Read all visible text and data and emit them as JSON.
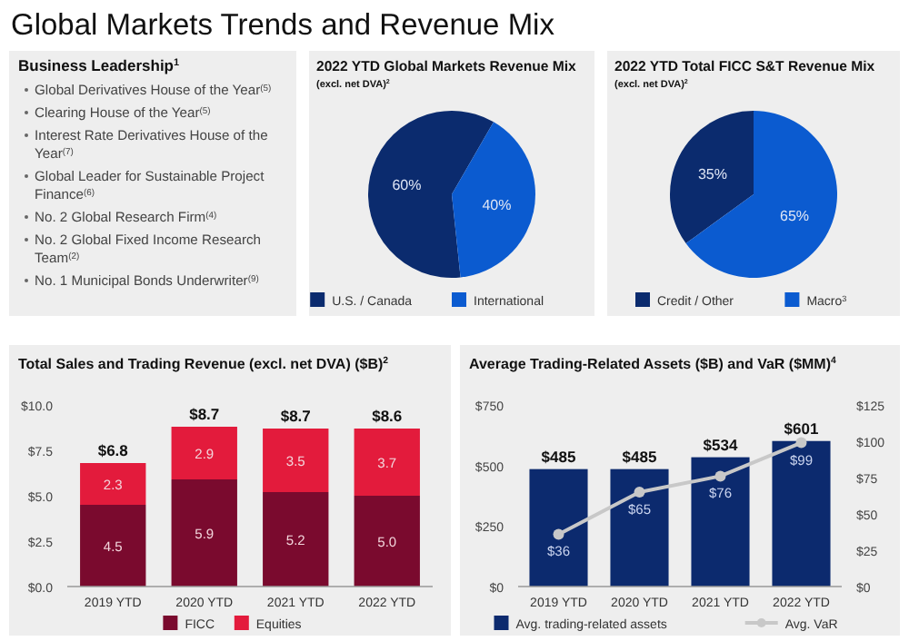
{
  "chart_data": [
    {
      "type": "other",
      "title": "Global Markets Trends and Revenue Mix",
      "subtitle": "Business Leadership$^{1}$",
      "annotations": [
        "Global Derivatives House of the Year$^{(5)}$",
        "Clearing House of the Year$^{(5)}$",
        "Interest Rate Derivatives House of the Year$^{(7)}$",
        "Global Leader for Sustainable Project Finance$^{(6)}$",
        "No. 2 Global Research Firm$^{(4)}$",
        "No. 2 Global Fixed Income Research Team$^{(2)}$",
        "No. 1 Municipal Bonds Underwriter$^{(9)}$"
      ]
    },
    {
      "type": "pie",
      "title": "2022 YTD Global Markets Revenue Mix",
      "subtitle": "(excl. net DVA)$^{2}$",
      "categories": [
        "U.S. / Canada",
        "International"
      ],
      "values": [
        60,
        40
      ],
      "colors": [
        "#0b2b6e",
        "#0b5bd0"
      ],
      "value_labels": [
        "60%",
        "40%"
      ],
      "legend": "bottom"
    },
    {
      "type": "pie",
      "title": "2022 YTD Total FICC S&T Revenue Mix",
      "subtitle": "(excl. net DVA)$^{2}$",
      "categories": [
        "Credit / Other",
        "Macro$^{3}$"
      ],
      "values": [
        35,
        65
      ],
      "colors": [
        "#0b2b6e",
        "#0b5bd0"
      ],
      "value_labels": [
        "35%",
        "65%"
      ],
      "legend": "bottom"
    },
    {
      "type": "bar",
      "title": "Total Sales and Trading Revenue (excl. net DVA) ($B)$^{2}$",
      "categories": [
        "2019 YTD",
        "2020 YTD",
        "2021 YTD",
        "2022 YTD"
      ],
      "stacked": true,
      "series": [
        {
          "name": "FICC",
          "color": "#7a0a2e",
          "values": [
            4.5,
            5.9,
            5.2,
            5.0
          ],
          "value_labels": [
            "4.5",
            "5.9",
            "5.2",
            "5.0"
          ]
        },
        {
          "name": "Equities",
          "color": "#e31b3c",
          "values": [
            2.3,
            2.9,
            3.5,
            3.7
          ],
          "value_labels": [
            "2.3",
            "2.9",
            "3.5",
            "3.7"
          ]
        }
      ],
      "totals": [
        "$6.8",
        "$8.7",
        "$8.7",
        "$8.6"
      ],
      "ylim": [
        0,
        10
      ],
      "yticks": [
        {
          "value": 0,
          "label": "$0.0"
        },
        {
          "value": 2.5,
          "label": "$2.5"
        },
        {
          "value": 5,
          "label": "$5.0"
        },
        {
          "value": 7.5,
          "label": "$7.5"
        },
        {
          "value": 10,
          "label": "$10.0"
        }
      ],
      "legend": "bottom"
    },
    {
      "type": "bar",
      "title": "Average Trading-Related Assets ($B) and VaR ($MM)$^{4}$",
      "categories": [
        "2019 YTD",
        "2020 YTD",
        "2021 YTD",
        "2022 YTD"
      ],
      "series": [
        {
          "name": "Avg. trading-related assets",
          "color": "#0c2a6e",
          "values": [
            485,
            485,
            534,
            601
          ],
          "value_labels": [
            "$485",
            "$485",
            "$534",
            "$601"
          ]
        },
        {
          "name": "Avg. VaR",
          "type": "line",
          "axis": "y2",
          "color": "#c8c8c8",
          "marker": "circle",
          "values": [
            36,
            65,
            76,
            99
          ],
          "value_labels": [
            "$36",
            "$65",
            "$76",
            "$99"
          ]
        }
      ],
      "ylim": [
        0,
        750
      ],
      "yticks": [
        {
          "value": 0,
          "label": "$0"
        },
        {
          "value": 250,
          "label": "$250"
        },
        {
          "value": 500,
          "label": "$500"
        },
        {
          "value": 750,
          "label": "$750"
        }
      ],
      "y2lim": [
        0,
        125
      ],
      "y2ticks": [
        {
          "value": 0,
          "label": "$0"
        },
        {
          "value": 25,
          "label": "$25"
        },
        {
          "value": 50,
          "label": "$50"
        },
        {
          "value": 75,
          "label": "$75"
        },
        {
          "value": 100,
          "label": "$100"
        },
        {
          "value": 125,
          "label": "$125"
        }
      ],
      "legend": "bottom"
    }
  ]
}
